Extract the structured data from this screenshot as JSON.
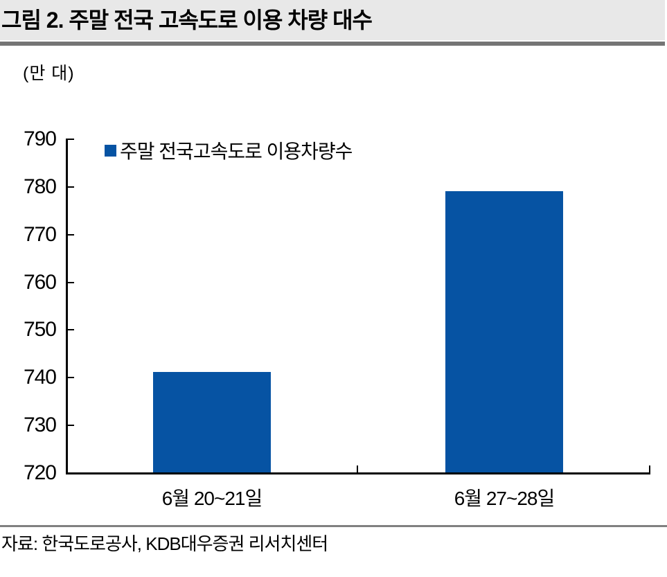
{
  "header": {
    "title": "그림 2. 주말 전국 고속도로 이용 차량 대수"
  },
  "chart": {
    "unit_label": "(만 대)"
  },
  "chart_data": {
    "type": "bar",
    "title": "주말 전국 고속도로 이용 차량 대수",
    "unit": "만 대",
    "categories": [
      "6월 20~21일",
      "6월 27~28일"
    ],
    "series": [
      {
        "name": "주말 전국고속도로 이용차량수",
        "values": [
          741,
          779
        ],
        "color": "#0653a3"
      }
    ],
    "ylim": [
      720,
      790
    ],
    "ytick_step": 10,
    "xlabel": "",
    "ylabel": "(만 대)",
    "grid": false,
    "legend_position": "top-left-inside"
  },
  "footer": {
    "source": "자료: 한국도로공사, KDB대우증권 리서치센터"
  }
}
